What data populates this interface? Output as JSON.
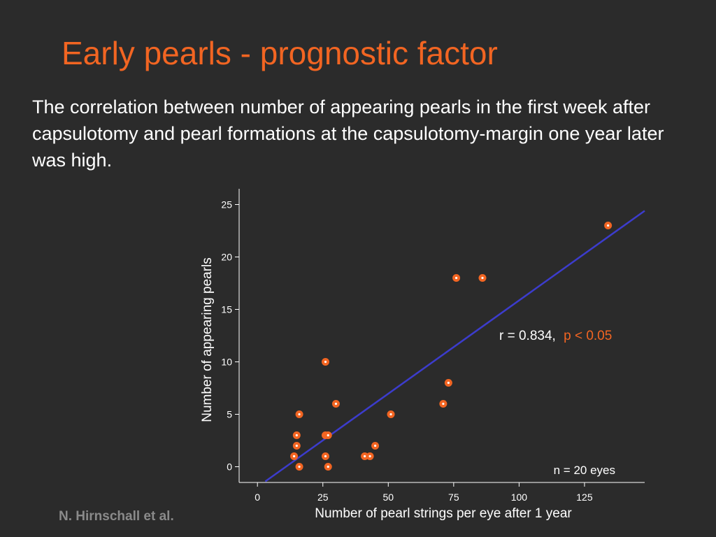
{
  "slide": {
    "title": "Early pearls - prognostic factor",
    "body": "The correlation between number of appearing pearls in the first week after capsulotomy and pearl formations at the capsulotomy-margin one year later was high.",
    "author": "N. Hirnschall et al."
  },
  "colors": {
    "background": "#2b2b2b",
    "title": "#f26522",
    "text": "#ffffff",
    "points": "#f26522",
    "regression_line": "#3c3ccc",
    "author": "#8a8a8a"
  },
  "chart_data": {
    "type": "scatter",
    "xlabel": "Number of pearl strings per eye after 1 year",
    "ylabel": "Number of appearing pearls",
    "xlim": [
      -7,
      148
    ],
    "ylim": [
      -1.5,
      26.5
    ],
    "xticks": [
      0,
      25,
      50,
      75,
      100,
      125
    ],
    "yticks": [
      0,
      5,
      10,
      15,
      20,
      25
    ],
    "grid": false,
    "points": [
      {
        "x": 14,
        "y": 1
      },
      {
        "x": 15,
        "y": 2
      },
      {
        "x": 15,
        "y": 3
      },
      {
        "x": 16,
        "y": 5
      },
      {
        "x": 16,
        "y": 0
      },
      {
        "x": 26,
        "y": 10
      },
      {
        "x": 26,
        "y": 3
      },
      {
        "x": 27,
        "y": 3
      },
      {
        "x": 26,
        "y": 1
      },
      {
        "x": 27,
        "y": 0
      },
      {
        "x": 30,
        "y": 6
      },
      {
        "x": 41,
        "y": 1
      },
      {
        "x": 43,
        "y": 1
      },
      {
        "x": 45,
        "y": 2
      },
      {
        "x": 51,
        "y": 5
      },
      {
        "x": 71,
        "y": 6
      },
      {
        "x": 73,
        "y": 8
      },
      {
        "x": 76,
        "y": 18
      },
      {
        "x": 86,
        "y": 18
      },
      {
        "x": 134,
        "y": 23
      }
    ],
    "regression_line": {
      "x": [
        3,
        148
      ],
      "y": [
        -1.4,
        24.4
      ]
    },
    "annotations": {
      "r": "r = 0.834,",
      "p": "p < 0.05",
      "n": "n = 20 eyes"
    }
  }
}
